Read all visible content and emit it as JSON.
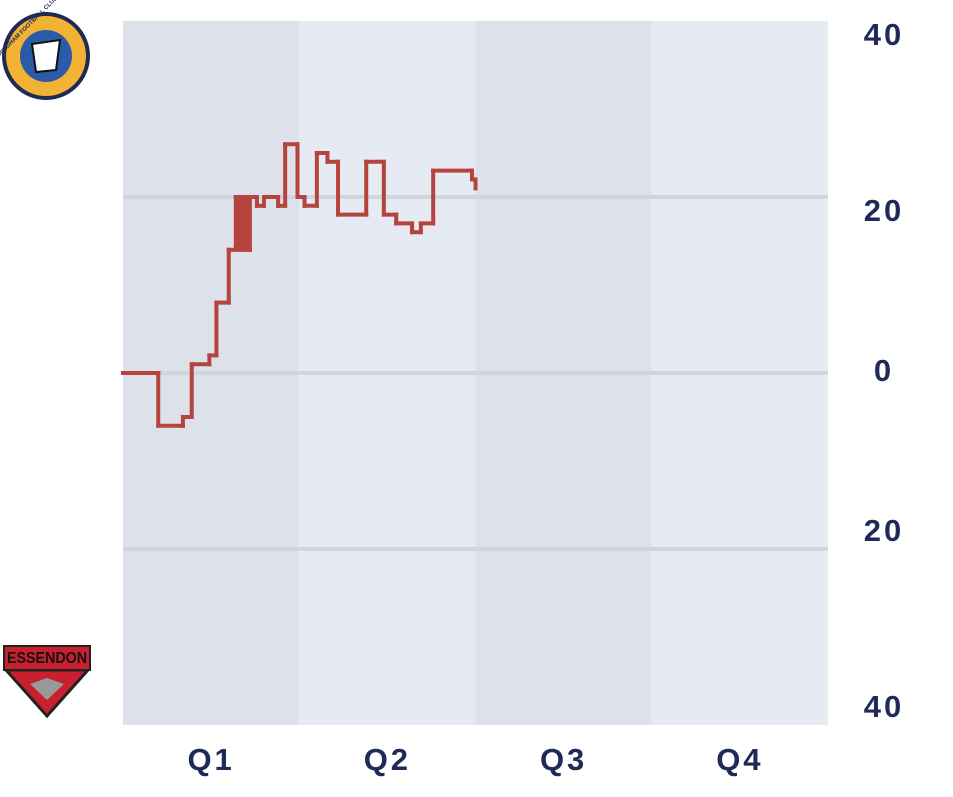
{
  "chart_data": {
    "type": "step",
    "categories": [
      "Q1",
      "Q2",
      "Q3",
      "Q4"
    ],
    "logos": [
      "SANDRINGHAM FOOTBALL CLUB",
      "ESSENDON"
    ],
    "band_colors": [
      "#dde1ea",
      "#e6eaf3"
    ],
    "xlim": [
      0,
      4
    ],
    "ylim": [
      -40,
      40
    ],
    "yticks": [
      40,
      20,
      0,
      {
        "value": -20,
        "label": "20"
      },
      {
        "value": -40,
        "label": "40"
      }
    ],
    "grid": true,
    "series": [
      {
        "color": "#b5443e",
        "x": [
          0,
          0.2,
          0.34,
          0.39,
          0.49,
          0.53,
          0.6,
          0.64,
          0.66,
          0.68,
          0.7,
          0.72,
          0.76,
          0.8,
          0.84,
          0.88,
          0.92,
          0.99,
          1.03,
          1.1,
          1.16,
          1.22,
          1.38,
          1.48,
          1.55,
          1.64,
          1.69,
          1.76,
          1.98,
          2.0
        ],
        "values": [
          0,
          -6,
          -5,
          1,
          2,
          8,
          14,
          20,
          14,
          20,
          14,
          20,
          19,
          20,
          20,
          19,
          26,
          20,
          19,
          25,
          24,
          18,
          24,
          18,
          17,
          16,
          17,
          23,
          22,
          21
        ]
      }
    ]
  }
}
